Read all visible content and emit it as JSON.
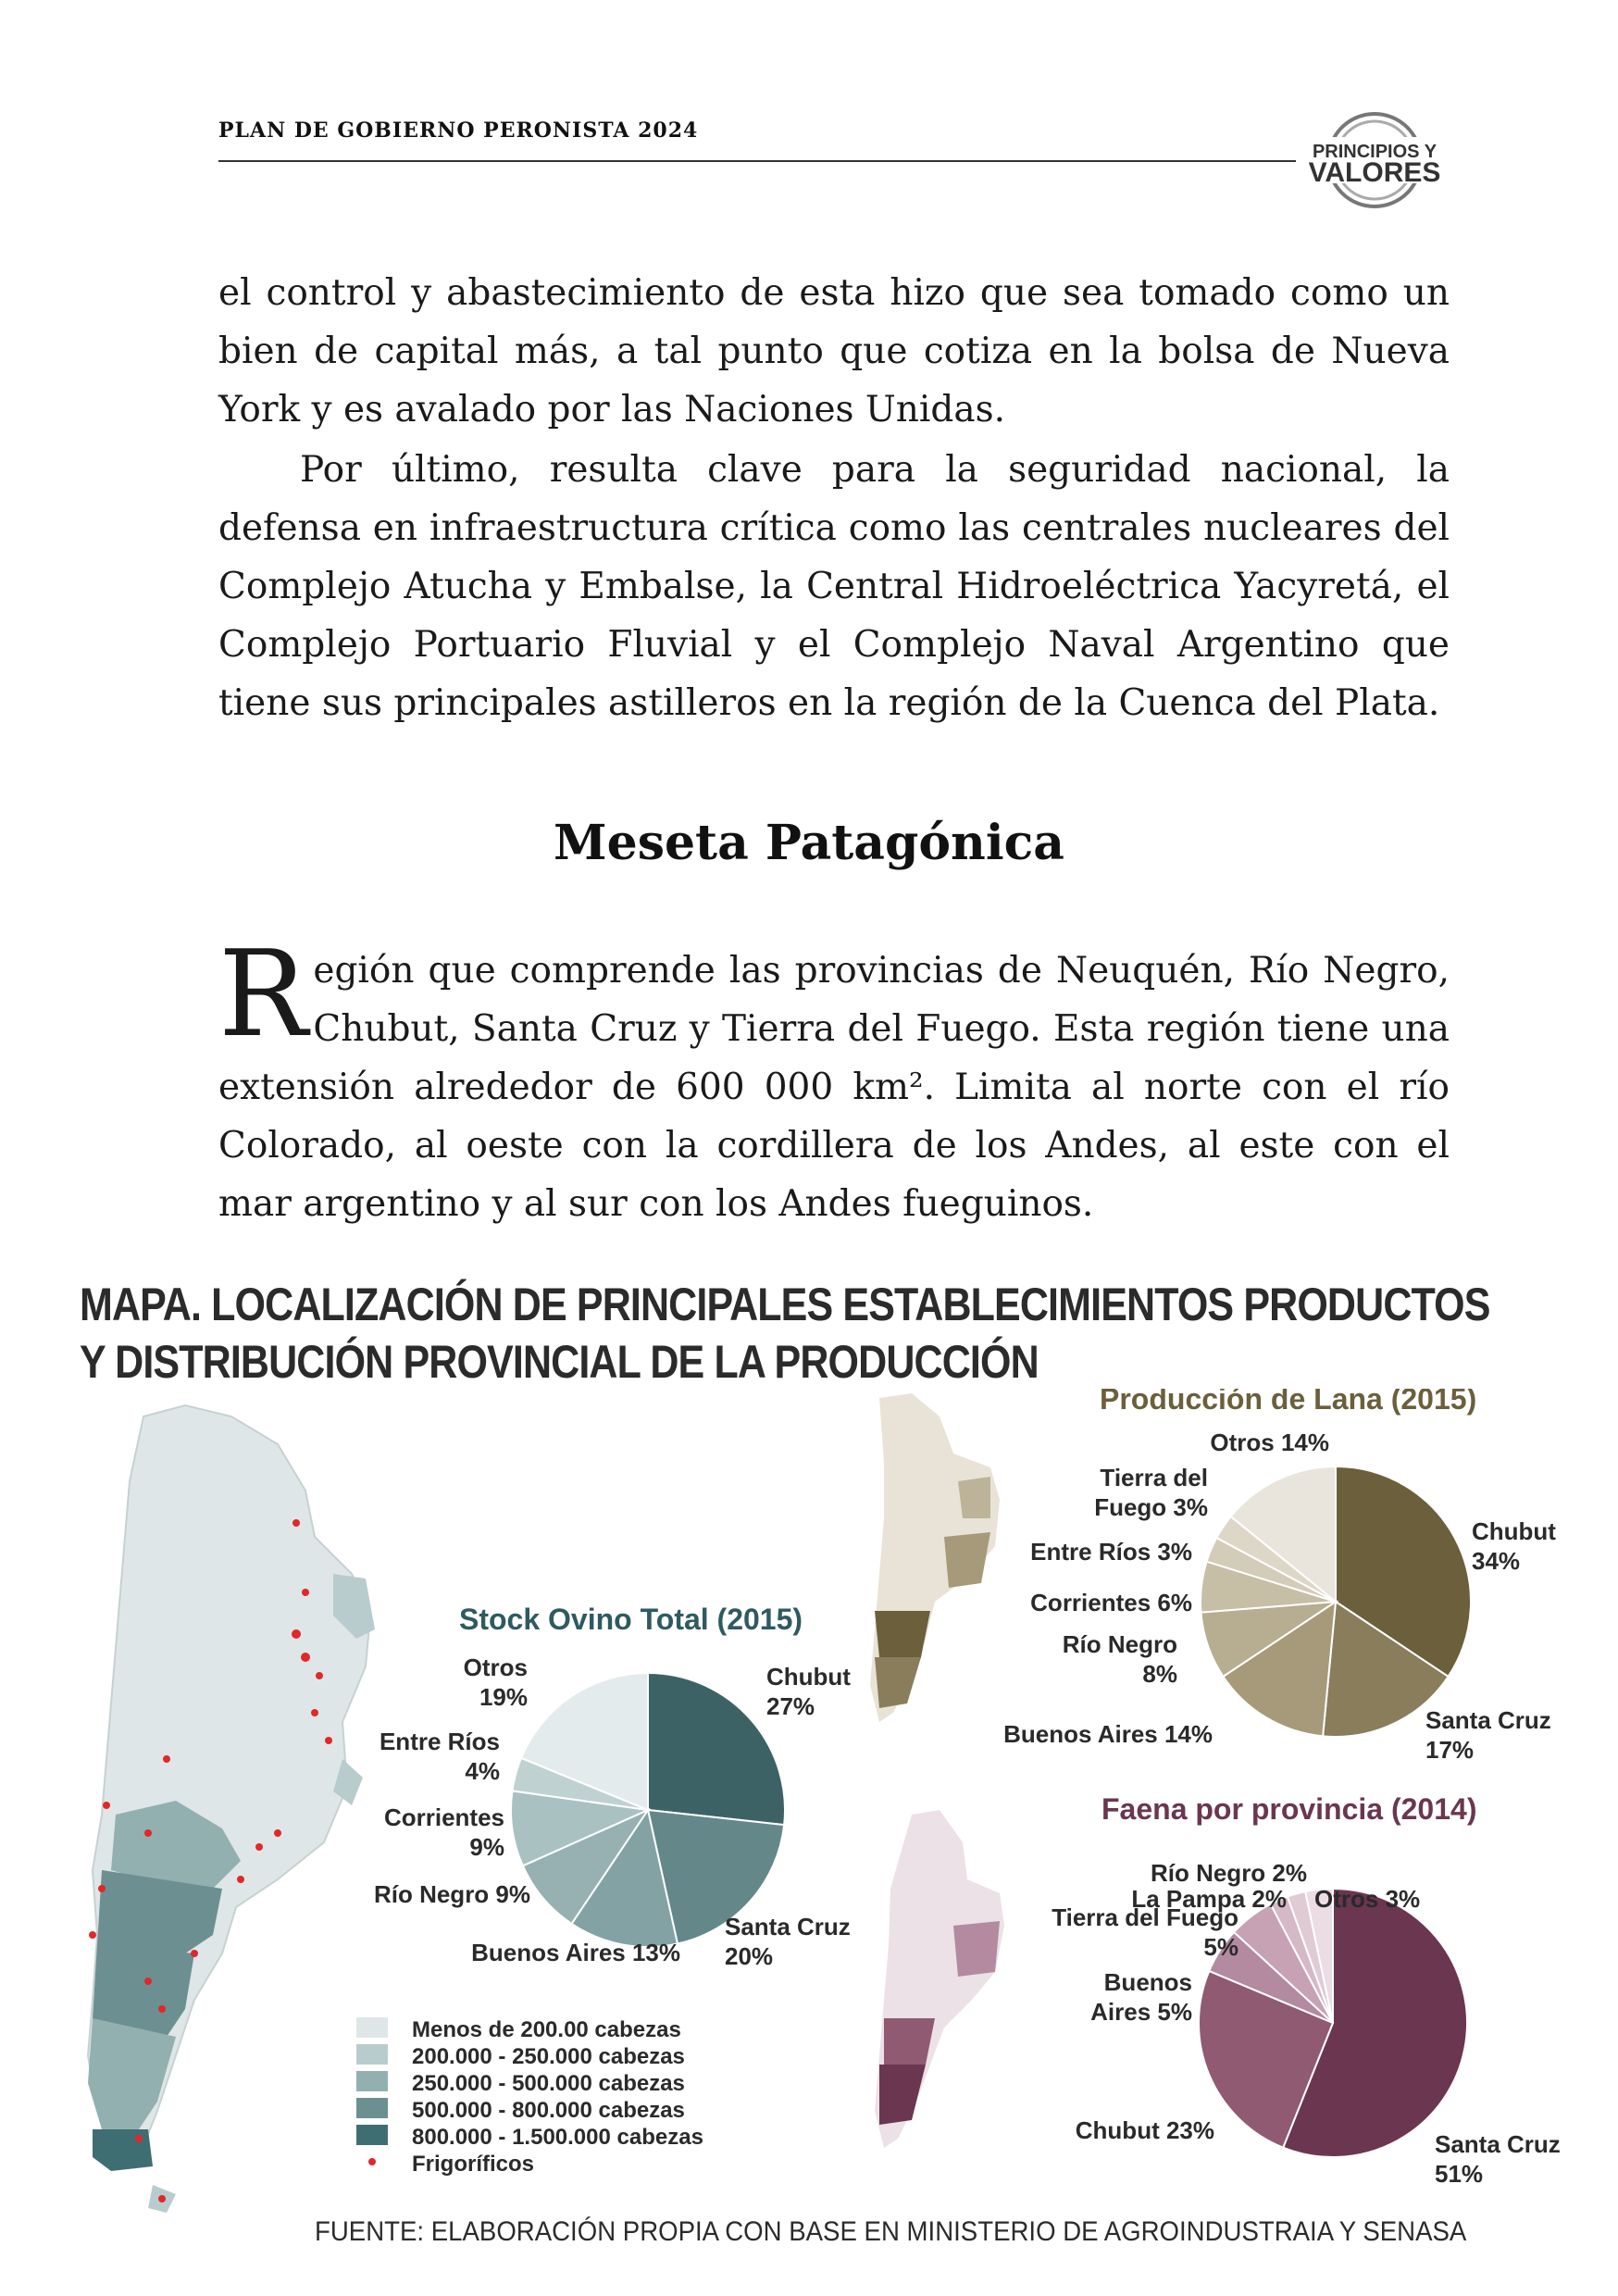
{
  "header": {
    "title": "PLAN DE GOBIERNO PERONISTA 2024",
    "logo_line1": "PRINCIPIOS Y",
    "logo_line2": "VALORES"
  },
  "paragraphs": {
    "p1": "el control y abastecimiento de esta hizo que sea tomado como un bien de capital más, a tal punto que cotiza en la bolsa de Nueva York y es avalado por las Naciones Unidas.",
    "p2": "Por último, resulta clave para la seguridad nacional, la defensa en infraestructura crítica como las centrales nucleares del Complejo Atucha y Embalse, la Central Hidroeléctrica Yacyretá, el Complejo Portuario Fluvial y el Complejo Naval Argentino que tiene sus principales astilleros en la región de la Cuenca del Plata."
  },
  "section": {
    "title": "Meseta Patagónica",
    "dropcap": "R",
    "text": "egión que comprende las provincias de Neuquén, Río Negro, Chubut, Santa Cruz y Tierra del Fuego. Esta región tiene una extensión alrededor de 600 000 km². Limita al norte con el río Colorado, al oeste con la cordillera de los Andes, al este con el mar argentino y al sur con los Andes fueguinos."
  },
  "figure": {
    "title_line1": "MAPA. LOCALIZACIÓN DE PRINCIPALES ESTABLECIMIENTOS PRODUCTOS",
    "title_line2": "Y DISTRIBUCIÓN PROVINCIAL DE LA PRODUCCIÓN",
    "source": "FUENTE: ELABORACIÓN PROPIA CON BASE EN MINISTERIO DE AGROINDUSTRAIA Y SENASA",
    "legend": [
      {
        "label": "Menos de 200.00 cabezas",
        "color": "#dfe6e7"
      },
      {
        "label": "200.000 - 250.000 cabezas",
        "color": "#b9cccd"
      },
      {
        "label": "250.000 - 500.000 cabezas",
        "color": "#93b0b1"
      },
      {
        "label": "500.000 - 800.000 cabezas",
        "color": "#6c9092"
      },
      {
        "label": "800.000 - 1.500.000 cabezas",
        "color": "#3f6e72"
      },
      {
        "label": "Frigoríficos",
        "color": "#e0282a"
      }
    ]
  },
  "chart_data": [
    {
      "type": "pie",
      "title": "Stock Ovino Total (2015)",
      "categories": [
        "Chubut",
        "Santa Cruz",
        "Buenos Aires",
        "Río Negro",
        "Corrientes",
        "Entre Ríos",
        "Otros"
      ],
      "values": [
        27,
        20,
        13,
        9,
        9,
        4,
        19
      ],
      "labels": [
        "Chubut\n27%",
        "Santa Cruz\n20%",
        "Buenos Aires 13%",
        "Río Negro 9%",
        "Corrientes\n9%",
        "Entre Ríos\n4%",
        "Otros\n19%"
      ],
      "colors": [
        "#3d6266",
        "#64878a",
        "#83a2a4",
        "#97b1b2",
        "#aac1c2",
        "#c0d1d2",
        "#e4ebec"
      ],
      "title_color": "#2f5a60"
    },
    {
      "type": "pie",
      "title": "Producción de Lana (2015)",
      "categories": [
        "Chubut",
        "Santa Cruz",
        "Buenos Aires",
        "Río Negro",
        "Corrientes",
        "Entre Ríos",
        "Tierra del Fuego",
        "Otros"
      ],
      "values": [
        34,
        17,
        14,
        8,
        6,
        3,
        3,
        14
      ],
      "labels": [
        "Chubut\n34%",
        "Santa Cruz\n17%",
        "Buenos Aires 14%",
        "Río Negro\n8%",
        "Corrientes 6%",
        "Entre Ríos 3%",
        "Tierra del\nFuego 3%",
        "Otros 14%"
      ],
      "colors": [
        "#6b5f3c",
        "#8a7d5c",
        "#a69a7a",
        "#b7ad90",
        "#c6bea5",
        "#d3ccb8",
        "#ddd7c7",
        "#e9e5dc"
      ],
      "title_color": "#6b5f3c"
    },
    {
      "type": "pie",
      "title": "Faena por provincia (2014)",
      "categories": [
        "Santa Cruz",
        "Chubut",
        "Buenos Aires",
        "Tierra del Fuego",
        "La Pampa",
        "Río Negro",
        "Otros"
      ],
      "values": [
        51,
        23,
        5,
        5,
        2,
        2,
        3
      ],
      "labels": [
        "Santa Cruz\n51%",
        "Chubut 23%",
        "Buenos\nAires 5%",
        "Tierra del Fuego\n5%",
        "La Pampa 2%",
        "Río Negro 2%",
        "Otros 3%"
      ],
      "colors": [
        "#6a3650",
        "#8f5a72",
        "#b38aa0",
        "#c6a2b4",
        "#d5b9c6",
        "#e0cbd4",
        "#ebdde3"
      ],
      "title_color": "#6a3650"
    }
  ]
}
